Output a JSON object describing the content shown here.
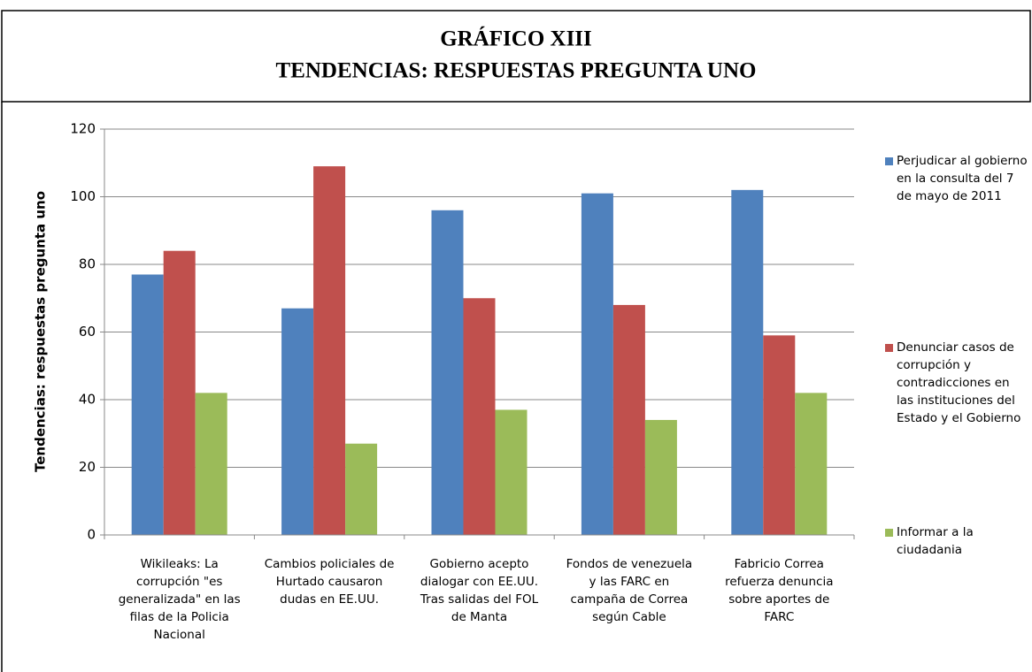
{
  "chart_data": {
    "type": "bar",
    "title": "GRÁFICO XIII",
    "subtitle": "TENDENCIAS: RESPUESTAS PREGUNTA UNO",
    "ylabel": "Tendencias: respuestas pregunta uno",
    "categories": [
      "Wikileaks: La corrupción \"es generalizada\" en las filas de la Policia Nacional",
      "Cambios policiales de Hurtado causaron dudas en EE.UU.",
      "Gobierno acepto dialogar con EE.UU. Tras salidas del FOL de Manta",
      "Fondos de venezuela y las FARC en campaña de Correa según Cable",
      "Fabricio Correa refuerza denuncia sobre aportes de FARC"
    ],
    "series": [
      {
        "name": "Perjudicar al gobierno en la consulta del 7 de mayo de 2011",
        "color": "#4f81bd",
        "values": [
          77,
          67,
          96,
          101,
          102
        ]
      },
      {
        "name": "Denunciar casos de corrupción y contradicciones en las instituciones del Estado y el Gobierno",
        "color": "#c0504d",
        "values": [
          84,
          109,
          70,
          68,
          59
        ]
      },
      {
        "name": "Informar a la ciudadania",
        "color": "#9bbb59",
        "values": [
          42,
          27,
          37,
          34,
          42
        ]
      }
    ],
    "ylim": [
      0,
      120
    ],
    "yticks": [
      0,
      20,
      40,
      60,
      80,
      100,
      120
    ],
    "grid": true,
    "legend": "right"
  }
}
